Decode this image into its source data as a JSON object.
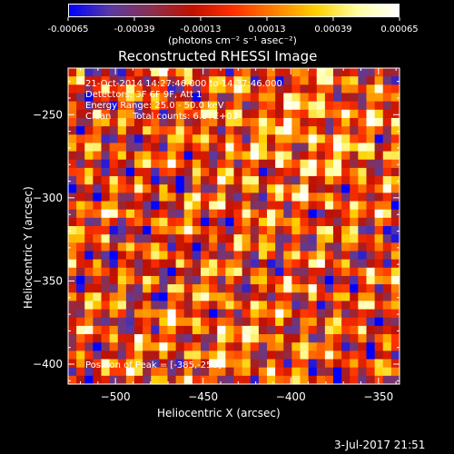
{
  "colorbar": {
    "ticks": [
      "-0.00065",
      "-0.00039",
      "-0.00013",
      "0.00013",
      "0.00039",
      "0.00065"
    ],
    "unit_label": "(photons cm⁻² s⁻¹ asec⁻²)"
  },
  "chart_data": {
    "type": "heatmap",
    "title": "Reconstructed RHESSI Image",
    "xlabel": "Heliocentric X (arcsec)",
    "ylabel": "Heliocentric Y (arcsec)",
    "xlim": [
      -527,
      -338
    ],
    "ylim": [
      -412,
      -222
    ],
    "xticks": [
      "-500",
      "-450",
      "-400",
      "-350"
    ],
    "yticks": [
      "-250",
      "-300",
      "-350",
      "-400"
    ],
    "clim": [
      -0.00065,
      0.00065
    ],
    "peak": [
      -385,
      -256
    ],
    "colormap": [
      "#0000ff",
      "#5a3aa0",
      "#8a3050",
      "#c01000",
      "#ff3000",
      "#ff8000",
      "#ffd000",
      "#ffffa0",
      "#ffffff"
    ]
  },
  "annotations": {
    "time_range": "21-Oct-2014 14:27:46.000 to 14:37:46.000",
    "detectors": "Detectors: 3F 6F 9F, Att 1",
    "energy": "Energy Range: 25.0 - 50.0 keV",
    "method": "Clean",
    "counts": "Total counts: 6.87E+03",
    "peak_text": "Position of Peak = [-385,-256]"
  },
  "footer": {
    "date": "3-Jul-2017 21:51"
  }
}
